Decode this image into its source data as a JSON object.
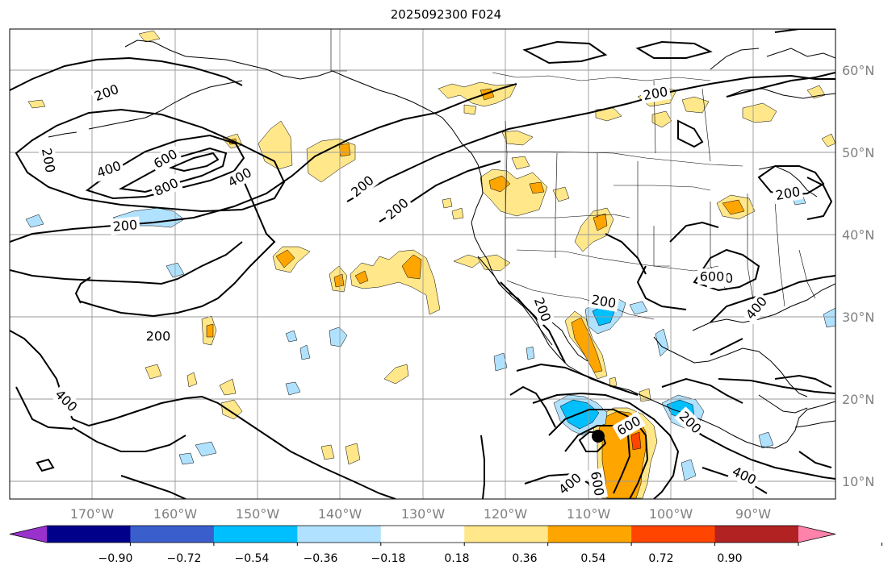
{
  "title": "2025092300 F024",
  "lat_labels": [
    "60°N",
    "50°N",
    "40°N",
    "30°N",
    "20°N",
    "10°N"
  ],
  "lon_labels": [
    "170°W",
    "160°W",
    "150°W",
    "140°W",
    "130°W",
    "120°W",
    "110°W",
    "100°W",
    "90°W"
  ],
  "colorbar": {
    "tick_labels": [
      "−0.90",
      "−0.72",
      "−0.54",
      "−0.36",
      "−0.18",
      "0.18",
      "0.36",
      "0.54",
      "0.72",
      "0.90"
    ],
    "colors": [
      "#9932cc",
      "#00008b",
      "#3a5fcd",
      "#00bfff",
      "#b0e2ff",
      "#ffffff",
      "#ffe78a",
      "#ffa500",
      "#ff4500",
      "#b22222",
      "#ff82ab"
    ]
  },
  "contour_labels": [
    "200",
    "200",
    "200",
    "200",
    "200",
    "200",
    "200",
    "200",
    "200",
    "200",
    "200",
    "400",
    "400",
    "400",
    "400",
    "400",
    "400",
    "400",
    "600",
    "600",
    "600",
    "600",
    "800"
  ],
  "colors": {
    "contour": "#000000",
    "grid": "#9a9a9a",
    "coast": "#000000",
    "label": "#808080"
  }
}
